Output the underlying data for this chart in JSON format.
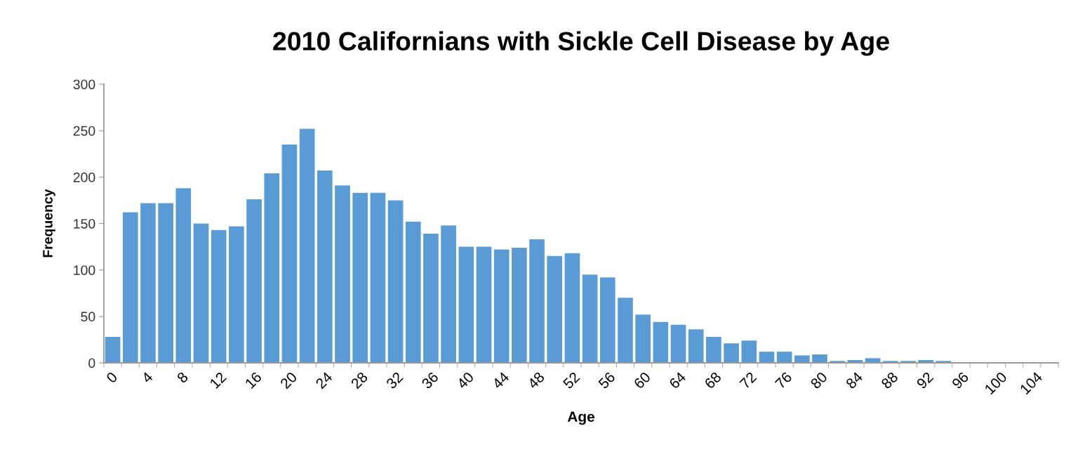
{
  "chart_data": {
    "type": "bar",
    "title": "2010 Californians with Sickle Cell Disease by Age",
    "xlabel": "Age",
    "ylabel": "Frequency",
    "categories": [
      "0",
      null,
      "4",
      null,
      "8",
      null,
      "12",
      null,
      "16",
      null,
      "20",
      null,
      "24",
      null,
      "28",
      null,
      "32",
      null,
      "36",
      null,
      "40",
      null,
      "44",
      null,
      "48",
      null,
      "52",
      null,
      "56",
      null,
      "60",
      null,
      "64",
      null,
      "68",
      null,
      "72",
      null,
      "76",
      null,
      "80",
      null,
      "84",
      null,
      "88",
      null,
      "92",
      null,
      "96",
      null,
      "100",
      null,
      "104",
      null
    ],
    "values": [
      28,
      162,
      172,
      172,
      188,
      150,
      143,
      147,
      176,
      204,
      235,
      252,
      207,
      191,
      183,
      183,
      175,
      152,
      139,
      148,
      125,
      125,
      122,
      124,
      133,
      115,
      118,
      95,
      92,
      70,
      52,
      44,
      41,
      36,
      28,
      21,
      24,
      12,
      12,
      8,
      9,
      2,
      3,
      5,
      2,
      2,
      3,
      2,
      0,
      0,
      0,
      0,
      0,
      0
    ],
    "color": "#5b9bd5",
    "ylim": [
      0,
      300
    ],
    "yticks": [
      0,
      50,
      100,
      150,
      200,
      250,
      300
    ],
    "grid": false,
    "legend": false
  }
}
